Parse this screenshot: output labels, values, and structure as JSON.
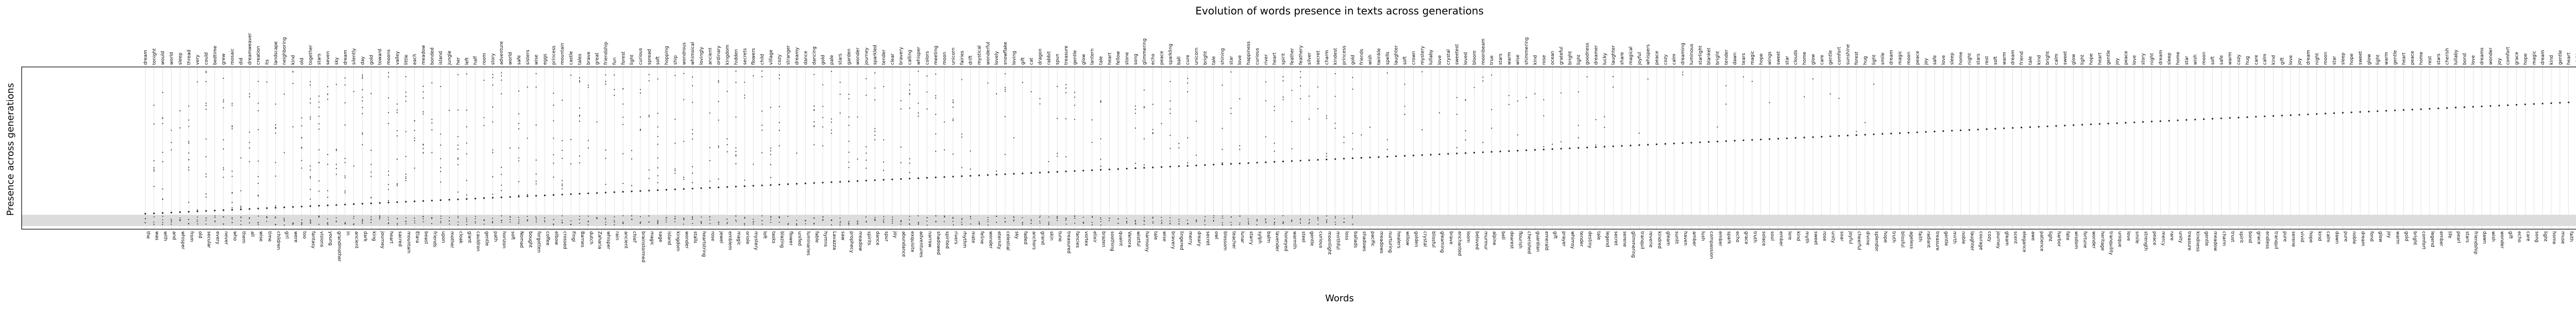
{
  "chart_data": {
    "type": "scatter",
    "title": "Evolution of words presence in texts across generations",
    "xlabel": "Words",
    "ylabel": "Presence across generations",
    "grid": "vertical",
    "words_bottom": [
      "the",
      "was",
      "with",
      "and",
      "whisper",
      "from",
      "old",
      "secular",
      "every",
      "never",
      "who",
      "them",
      "all",
      "wise",
      "time",
      "children",
      "girl",
      "were",
      "too",
      "fantasy",
      "visions",
      "young",
      "grandmother",
      "in",
      "ancient",
      "dark",
      "king",
      "journey",
      "heart",
      "sacred",
      "mountain",
      "Elara",
      "beast",
      "friends",
      "upon",
      "mother",
      "cloak",
      "giant",
      "cauldron",
      "gentle",
      "path",
      "horizon",
      "soft",
      "Nomad",
      "bought",
      "forgotten",
      "coffee",
      "elbow",
      "crossed",
      "Fingi",
      "Barnes",
      "dutch",
      "Zaharia",
      "whisper",
      "rain",
      "ancient",
      "chief",
      "brainstormed",
      "magic",
      "sage",
      "island",
      "kingdom",
      "wonder",
      "stalls",
      "heartstring",
      "rose",
      "jewel",
      "emblem",
      "magic",
      "oriole",
      "mystery",
      "loft",
      "tasks",
      "blazing",
      "flower",
      "unifed",
      "luminaries",
      "fable",
      "hymns",
      "Lavazza",
      "saw",
      "prophecy",
      "meadow",
      "spirits",
      "dance",
      "spur",
      "joy",
      "abundance",
      "exquisite",
      "adventures",
      "narrow",
      "shadowed",
      "spirited",
      "rivers",
      "rhythm",
      "mate",
      "feline",
      "wonder",
      "eternity",
      "celestial",
      "sky",
      "faded",
      "anchors",
      "grand",
      "skin",
      "tune",
      "treasured",
      "fancies",
      "vortex",
      "elixir",
      "brazen",
      "soothing",
      "quaint",
      "Vanora",
      "wistful",
      "harmony",
      "tale",
      "wise",
      "bravery",
      "lingered",
      "merry",
      "dreary",
      "secret",
      "owl",
      "blossom",
      "teacher",
      "lunar",
      "starry",
      "sylph",
      "balm",
      "lavender",
      "honeyed",
      "warmth",
      "steel",
      "gentle",
      "curious",
      "moonlight",
      "mirthful",
      "loss",
      "ballads",
      "shadows",
      "pacific",
      "meadows",
      "nurturing",
      "healers",
      "willow",
      "golden",
      "crystal",
      "blissful",
      "gleaming",
      "brave",
      "enchanted",
      "loom",
      "beloved",
      "murmur",
      "alpine",
      "bell",
      "dearest",
      "flourish",
      "cherished",
      "guardian",
      "emerald",
      "gift",
      "prayer",
      "whimsy",
      "tender",
      "destiny",
      "tale",
      "legend",
      "secret",
      "serene",
      "glimmering",
      "tranquil",
      "reverie",
      "kindred",
      "gleam",
      "sunlit",
      "haven",
      "amber",
      "lush",
      "compassion",
      "ember",
      "spark",
      "echo",
      "grace",
      "truth",
      "solace",
      "soul",
      "ember",
      "lore",
      "kind",
      "myth",
      "sweet",
      "rose",
      "unity",
      "soar",
      "joyful",
      "cheerful",
      "divine",
      "splendor",
      "hope",
      "truth",
      "blissful",
      "ageless",
      "faith",
      "radiant",
      "treasure",
      "gentle",
      "mirth",
      "noble",
      "laughter",
      "courage",
      "cozy",
      "journey",
      "gleam",
      "scent",
      "elegance",
      "awe",
      "patience",
      "light",
      "harbor",
      "fate",
      "wisdom",
      "fortune",
      "wonder",
      "heritage",
      "tranquility",
      "unique",
      "love",
      "smile",
      "strength",
      "peace",
      "mercy",
      "rare",
      "unity",
      "treasure",
      "kindness",
      "gentle",
      "meadow",
      "charm",
      "trust",
      "spirit",
      "bond",
      "grace",
      "endless",
      "tranquil",
      "pure",
      "serene",
      "vivid",
      "hope",
      "kind",
      "calm",
      "dawn",
      "pure",
      "noble",
      "dream",
      "fond",
      "glow",
      "joy",
      "warm",
      "gold",
      "bright",
      "comfort",
      "legend",
      "ember",
      "life",
      "pearl",
      "stars",
      "friendship",
      "dawn",
      "wish",
      "wonder",
      "gift",
      "echo",
      "care",
      "song",
      "light",
      "home",
      "muse",
      "faith",
      "dream",
      "bloom",
      "heart",
      "grace",
      "joy",
      "love",
      "comfort",
      "peace",
      "gentle",
      "haven",
      "life"
    ],
    "words_top": [
      "dream",
      "tonight",
      "would",
      "world",
      "sleep",
      "thread",
      "very",
      "could",
      "bedtime",
      "grew",
      "mosaic",
      "did",
      "dreamweaver",
      "creation",
      "its",
      "landscape",
      "neighboring",
      "kind",
      "old",
      "together",
      "stars",
      "seven",
      "sky",
      "dream",
      "silently",
      "day",
      "gold",
      "toward",
      "moons",
      "valley",
      "little",
      "each",
      "meadow",
      "bonded",
      "island",
      "jungle",
      "her",
      "left",
      "half",
      "room",
      "story",
      "adventure",
      "world",
      "safe",
      "sisters",
      "wise",
      "eggs",
      "princess",
      "mountain",
      "castle",
      "tales",
      "brave",
      "great",
      "friendship",
      "fun",
      "forest",
      "light",
      "curious",
      "spread",
      "soft",
      "hopping",
      "ship",
      "wondrous",
      "whimsical",
      "lovingly",
      "ancient",
      "ordinary",
      "kingdom",
      "hidden",
      "secrets",
      "flowers",
      "child",
      "village",
      "cozy",
      "stranger",
      "dreamy",
      "dance",
      "dancing",
      "gold",
      "pale",
      "stars",
      "garden",
      "wonder",
      "journey",
      "sparkled",
      "tender",
      "clear",
      "bravery",
      "calling",
      "whisper",
      "colors",
      "meeting",
      "moon",
      "unicorn",
      "fairies",
      "drift",
      "mystical",
      "wonderful",
      "lovely",
      "snowflake",
      "loving",
      "gift",
      "cat",
      "dragon",
      "rabbit",
      "spun",
      "treasure",
      "gentle",
      "glow",
      "lantern",
      "tale",
      "heart",
      "fellow",
      "stone",
      "song",
      "glimmering",
      "echo",
      "peace",
      "sparkling",
      "ball",
      "cure",
      "unicorn",
      "bright",
      "tale",
      "shining",
      "star",
      "love",
      "happiness",
      "curious",
      "river",
      "heart",
      "spirit",
      "feather",
      "feathery",
      "silver",
      "secret",
      "charm",
      "kindest",
      "princess",
      "gold",
      "friends",
      "wish",
      "twinkle",
      "spells",
      "laughter",
      "soft",
      "crown",
      "mystery",
      "lullaby",
      "love",
      "crystal",
      "sweetest",
      "loved",
      "bloom",
      "moonbeam",
      "true",
      "stars",
      "warm",
      "wise",
      "shimmering",
      "kind",
      "rose",
      "ocean",
      "grateful",
      "bright",
      "light",
      "goodness",
      "dreamer",
      "lucky",
      "laughter",
      "share",
      "magical",
      "joyful",
      "whispers",
      "peace",
      "cozy",
      "calm",
      "dreaming",
      "luminous",
      "starlight",
      "blanket",
      "bright",
      "tender",
      "dawn",
      "tears",
      "magic",
      "hope",
      "wings",
      "sweet",
      "star",
      "clouds",
      "home",
      "glow",
      "care",
      "gentle",
      "comfort",
      "sunshine",
      "forest",
      "hug",
      "light",
      "smile",
      "dream",
      "magic",
      "moon",
      "peace",
      "joy",
      "safe",
      "love",
      "sleep",
      "home",
      "night",
      "stars",
      "rest",
      "soft",
      "warm",
      "dream",
      "friend",
      "tale",
      "kind",
      "bright",
      "calm",
      "sweet",
      "glow",
      "light",
      "hope",
      "heart",
      "gentle",
      "joy",
      "peace",
      "love",
      "story",
      "night",
      "dream",
      "sleep",
      "home",
      "star",
      "wish",
      "moon",
      "soft",
      "safe",
      "warm",
      "cozy",
      "hug",
      "care",
      "calm",
      "kind",
      "gift",
      "love",
      "joy",
      "dream",
      "night",
      "moon",
      "star",
      "sleep",
      "hope",
      "sweet",
      "glow",
      "light",
      "warm",
      "gentle",
      "heart",
      "peace",
      "home",
      "rest",
      "stars",
      "cherish",
      "lullaby",
      "bond",
      "love",
      "dreams",
      "wonder",
      "joy",
      "comfort",
      "grace",
      "hope",
      "magic",
      "dream",
      "kind",
      "gentle",
      "heart",
      "night",
      "sleep"
    ]
  }
}
